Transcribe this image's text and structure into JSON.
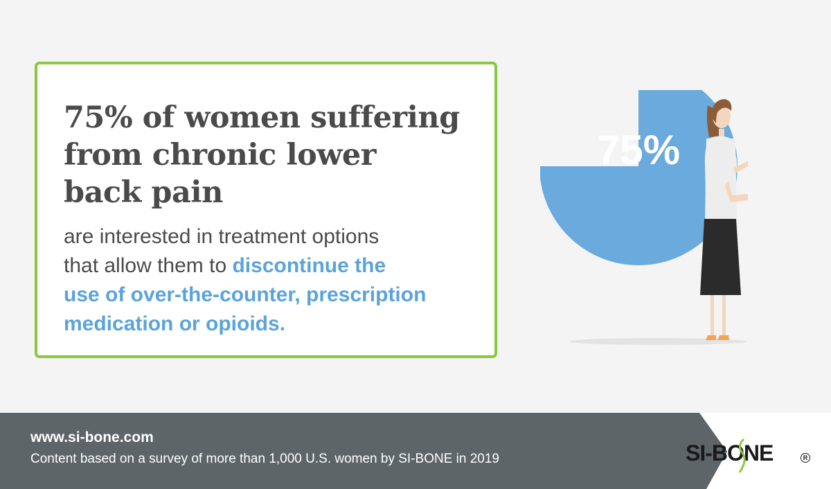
{
  "headline": {
    "lines": [
      "75% of women suffering",
      "from chronic lower",
      "back pain"
    ]
  },
  "body": {
    "line1": "are interested in treatment options",
    "line2_plain": "that allow them to ",
    "line2_highlight": "discontinue the",
    "line3_highlight": "use of over-the-counter, prescription",
    "line4_highlight": "medication or opioids."
  },
  "graphic": {
    "pie_percent_label": "75%",
    "pie_value": 75
  },
  "footer": {
    "url": "www.si-bone.com",
    "note": "Content based on a survey of more than 1,000 U.S. women by SI-BONE in 2019",
    "logo_text": "SI-BONE",
    "logo_mark": "R"
  },
  "colors": {
    "frame_green": "#8dc63f",
    "accent_blue": "#5ba3dc",
    "text_gray": "#4a4a4a",
    "footer_gray": "#5d6568"
  }
}
